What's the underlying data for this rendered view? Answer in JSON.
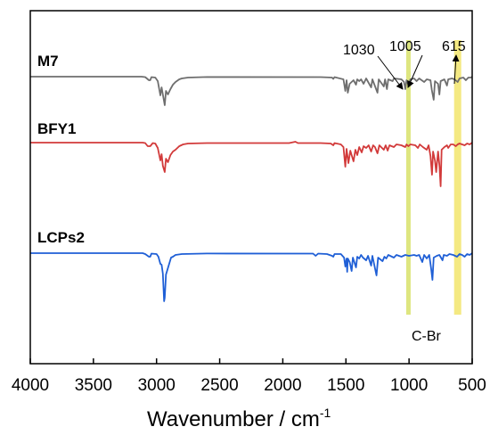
{
  "chart_data": {
    "type": "line",
    "title": "",
    "xlabel": "Wavenumber / cm",
    "xlabel_sup": "-1",
    "ylabel": "",
    "xlim": [
      4000,
      500
    ],
    "x_reversed": true,
    "xticks": [
      4000,
      3500,
      3000,
      2500,
      2000,
      1500,
      1000,
      500
    ],
    "yaxis": "none",
    "grid": false,
    "legend": "none",
    "series": [
      {
        "name": "M7",
        "color": "#6e6e6e",
        "baseline": 0.0,
        "points": [
          [
            4000,
            0
          ],
          [
            3200,
            0
          ],
          [
            3120,
            0
          ],
          [
            3090,
            -0.05
          ],
          [
            3060,
            -0.4
          ],
          [
            3050,
            -0.4
          ],
          [
            3040,
            -0.05
          ],
          [
            3010,
            -0.1
          ],
          [
            2990,
            -0.5
          ],
          [
            2970,
            -2.1
          ],
          [
            2960,
            -1.2
          ],
          [
            2950,
            -2.0
          ],
          [
            2935,
            -3.2
          ],
          [
            2925,
            -1.6
          ],
          [
            2910,
            -2.0
          ],
          [
            2890,
            -1.4
          ],
          [
            2870,
            -0.9
          ],
          [
            2850,
            -0.6
          ],
          [
            2820,
            -0.3
          ],
          [
            2800,
            -0.2
          ],
          [
            2750,
            -0.1
          ],
          [
            2600,
            -0.04
          ],
          [
            1700,
            -0.05
          ],
          [
            1610,
            -0.1
          ],
          [
            1600,
            -0.25
          ],
          [
            1590,
            -0.05
          ],
          [
            1520,
            -0.3
          ],
          [
            1505,
            -1.6
          ],
          [
            1495,
            -0.4
          ],
          [
            1485,
            -1.8
          ],
          [
            1470,
            -0.8
          ],
          [
            1440,
            -0.4
          ],
          [
            1420,
            -0.9
          ],
          [
            1410,
            -0.3
          ],
          [
            1395,
            -0.5
          ],
          [
            1380,
            -0.3
          ],
          [
            1360,
            -0.8
          ],
          [
            1340,
            -0.2
          ],
          [
            1300,
            -1.2
          ],
          [
            1290,
            -0.3
          ],
          [
            1250,
            -1.8
          ],
          [
            1240,
            -0.3
          ],
          [
            1200,
            -1.1
          ],
          [
            1190,
            -0.3
          ],
          [
            1175,
            -1.4
          ],
          [
            1165,
            -0.3
          ],
          [
            1130,
            -0.5
          ],
          [
            1120,
            -0.2
          ],
          [
            1060,
            -0.3
          ],
          [
            1040,
            -0.6
          ],
          [
            1030,
            -1.4
          ],
          [
            1020,
            -0.4
          ],
          [
            1005,
            -0.9
          ],
          [
            990,
            -0.3
          ],
          [
            960,
            -0.2
          ],
          [
            940,
            -0.5
          ],
          [
            920,
            -0.2
          ],
          [
            880,
            -0.6
          ],
          [
            860,
            -0.3
          ],
          [
            830,
            -0.4
          ],
          [
            820,
            -1.5
          ],
          [
            805,
            -2.6
          ],
          [
            795,
            -0.5
          ],
          [
            770,
            -0.8
          ],
          [
            760,
            -2.0
          ],
          [
            750,
            -0.5
          ],
          [
            720,
            -0.3
          ],
          [
            700,
            -1.0
          ],
          [
            690,
            -0.3
          ],
          [
            660,
            -0.2
          ],
          [
            640,
            -0.3
          ],
          [
            615,
            -0.6
          ],
          [
            600,
            -0.2
          ],
          [
            570,
            -0.1
          ],
          [
            550,
            -0.4
          ],
          [
            530,
            -0.1
          ],
          [
            510,
            -0.1
          ],
          [
            500,
            0
          ]
        ]
      },
      {
        "name": "BFY1",
        "color": "#d23a3a",
        "baseline": 0.0,
        "points": [
          [
            4000,
            0
          ],
          [
            3200,
            0
          ],
          [
            3110,
            0
          ],
          [
            3090,
            -0.05
          ],
          [
            3070,
            -0.4
          ],
          [
            3050,
            -0.4
          ],
          [
            3030,
            -0.05
          ],
          [
            3010,
            -0.1
          ],
          [
            2990,
            -0.6
          ],
          [
            2970,
            -2.0
          ],
          [
            2960,
            -1.3
          ],
          [
            2950,
            -2.6
          ],
          [
            2935,
            -3.3
          ],
          [
            2925,
            -1.8
          ],
          [
            2910,
            -2.2
          ],
          [
            2890,
            -1.4
          ],
          [
            2870,
            -1.0
          ],
          [
            2850,
            -0.8
          ],
          [
            2820,
            -0.4
          ],
          [
            2790,
            -0.2
          ],
          [
            2750,
            -0.1
          ],
          [
            2600,
            -0.05
          ],
          [
            1950,
            -0.05
          ],
          [
            1900,
            0.1
          ],
          [
            1880,
            -0.05
          ],
          [
            1800,
            -0.05
          ],
          [
            1700,
            -0.05
          ],
          [
            1620,
            -0.1
          ],
          [
            1600,
            -0.3
          ],
          [
            1590,
            -0.05
          ],
          [
            1540,
            -0.2
          ],
          [
            1520,
            -0.5
          ],
          [
            1505,
            -2.7
          ],
          [
            1495,
            -0.7
          ],
          [
            1480,
            -2.3
          ],
          [
            1465,
            -0.9
          ],
          [
            1440,
            -2.1
          ],
          [
            1425,
            -0.8
          ],
          [
            1410,
            -1.4
          ],
          [
            1395,
            -0.5
          ],
          [
            1375,
            -1.1
          ],
          [
            1360,
            -0.4
          ],
          [
            1340,
            -0.6
          ],
          [
            1320,
            -0.3
          ],
          [
            1300,
            -1.0
          ],
          [
            1285,
            -0.3
          ],
          [
            1270,
            -0.5
          ],
          [
            1250,
            -1.2
          ],
          [
            1235,
            -0.3
          ],
          [
            1200,
            -0.8
          ],
          [
            1185,
            -0.3
          ],
          [
            1170,
            -0.9
          ],
          [
            1155,
            -0.3
          ],
          [
            1120,
            -0.5
          ],
          [
            1100,
            -0.2
          ],
          [
            1060,
            -0.3
          ],
          [
            1030,
            -0.5
          ],
          [
            1020,
            -0.2
          ],
          [
            1005,
            -0.4
          ],
          [
            990,
            -0.2
          ],
          [
            950,
            -0.3
          ],
          [
            930,
            -0.6
          ],
          [
            915,
            -0.2
          ],
          [
            890,
            -0.5
          ],
          [
            860,
            -0.8
          ],
          [
            845,
            -0.3
          ],
          [
            830,
            -1.5
          ],
          [
            818,
            -3.6
          ],
          [
            810,
            -1.0
          ],
          [
            795,
            -2.0
          ],
          [
            785,
            -3.3
          ],
          [
            770,
            -1.0
          ],
          [
            760,
            -2.5
          ],
          [
            750,
            -4.9
          ],
          [
            742,
            -0.8
          ],
          [
            720,
            -0.5
          ],
          [
            700,
            -0.3
          ],
          [
            690,
            -0.6
          ],
          [
            670,
            -0.2
          ],
          [
            650,
            -0.2
          ],
          [
            630,
            -0.4
          ],
          [
            615,
            -0.2
          ],
          [
            600,
            -0.1
          ],
          [
            580,
            -0.2
          ],
          [
            560,
            -0.3
          ],
          [
            540,
            -0.1
          ],
          [
            520,
            -0.2
          ],
          [
            500,
            0
          ]
        ]
      },
      {
        "name": "LCPs2",
        "color": "#1f5fd6",
        "baseline": 0.0,
        "points": [
          [
            4000,
            0
          ],
          [
            3200,
            0
          ],
          [
            3110,
            0
          ],
          [
            3090,
            -0.1
          ],
          [
            3060,
            -0.4
          ],
          [
            3050,
            -0.4
          ],
          [
            3040,
            -0.05
          ],
          [
            3000,
            -0.1
          ],
          [
            2985,
            -0.4
          ],
          [
            2970,
            -1.2
          ],
          [
            2960,
            -1.3
          ],
          [
            2950,
            -2.3
          ],
          [
            2940,
            -5.4
          ],
          [
            2935,
            -5.0
          ],
          [
            2925,
            -2.4
          ],
          [
            2915,
            -1.9
          ],
          [
            2900,
            -1.2
          ],
          [
            2885,
            -0.5
          ],
          [
            2870,
            -0.4
          ],
          [
            2850,
            -0.2
          ],
          [
            2800,
            -0.1
          ],
          [
            2600,
            -0.04
          ],
          [
            1760,
            -0.05
          ],
          [
            1740,
            -0.3
          ],
          [
            1720,
            -0.05
          ],
          [
            1650,
            -0.1
          ],
          [
            1610,
            -0.3
          ],
          [
            1600,
            -0.4
          ],
          [
            1590,
            -0.1
          ],
          [
            1540,
            -0.1
          ],
          [
            1515,
            -0.5
          ],
          [
            1505,
            -1.5
          ],
          [
            1495,
            -0.6
          ],
          [
            1490,
            -2.1
          ],
          [
            1485,
            -0.6
          ],
          [
            1470,
            -1.0
          ],
          [
            1455,
            -2.0
          ],
          [
            1445,
            -0.5
          ],
          [
            1420,
            -1.6
          ],
          [
            1410,
            -0.4
          ],
          [
            1395,
            -0.6
          ],
          [
            1380,
            -0.2
          ],
          [
            1365,
            -0.5
          ],
          [
            1340,
            -0.8
          ],
          [
            1325,
            -0.3
          ],
          [
            1300,
            -1.4
          ],
          [
            1290,
            -0.3
          ],
          [
            1270,
            -1.7
          ],
          [
            1258,
            -2.5
          ],
          [
            1245,
            -0.5
          ],
          [
            1210,
            -0.9
          ],
          [
            1195,
            -0.4
          ],
          [
            1180,
            -0.6
          ],
          [
            1165,
            -0.2
          ],
          [
            1120,
            -0.5
          ],
          [
            1100,
            -0.2
          ],
          [
            1060,
            -0.4
          ],
          [
            1030,
            -0.2
          ],
          [
            1000,
            -0.3
          ],
          [
            960,
            -0.2
          ],
          [
            940,
            -0.3
          ],
          [
            920,
            -0.2
          ],
          [
            895,
            -1.0
          ],
          [
            880,
            -0.2
          ],
          [
            860,
            -0.6
          ],
          [
            840,
            -0.2
          ],
          [
            825,
            -1.7
          ],
          [
            815,
            -3.0
          ],
          [
            805,
            -0.5
          ],
          [
            780,
            -0.3
          ],
          [
            760,
            -0.2
          ],
          [
            735,
            -0.8
          ],
          [
            725,
            -0.2
          ],
          [
            700,
            -0.3
          ],
          [
            680,
            -0.1
          ],
          [
            650,
            -0.2
          ],
          [
            620,
            -0.4
          ],
          [
            600,
            -0.1
          ],
          [
            580,
            -0.2
          ],
          [
            560,
            -0.4
          ],
          [
            540,
            -0.1
          ],
          [
            520,
            -0.2
          ],
          [
            500,
            0
          ]
        ]
      }
    ],
    "highlight_bands": [
      {
        "x": 1005,
        "color": "#d8e26a",
        "label": ""
      },
      {
        "x": 615,
        "color": "#f2e56c",
        "label": ""
      }
    ],
    "annotations": [
      {
        "text": "1030",
        "x": 1030
      },
      {
        "text": "1005",
        "x": 1005
      },
      {
        "text": "615",
        "x": 615
      },
      {
        "text": "C-Br",
        "x": 615
      }
    ]
  }
}
